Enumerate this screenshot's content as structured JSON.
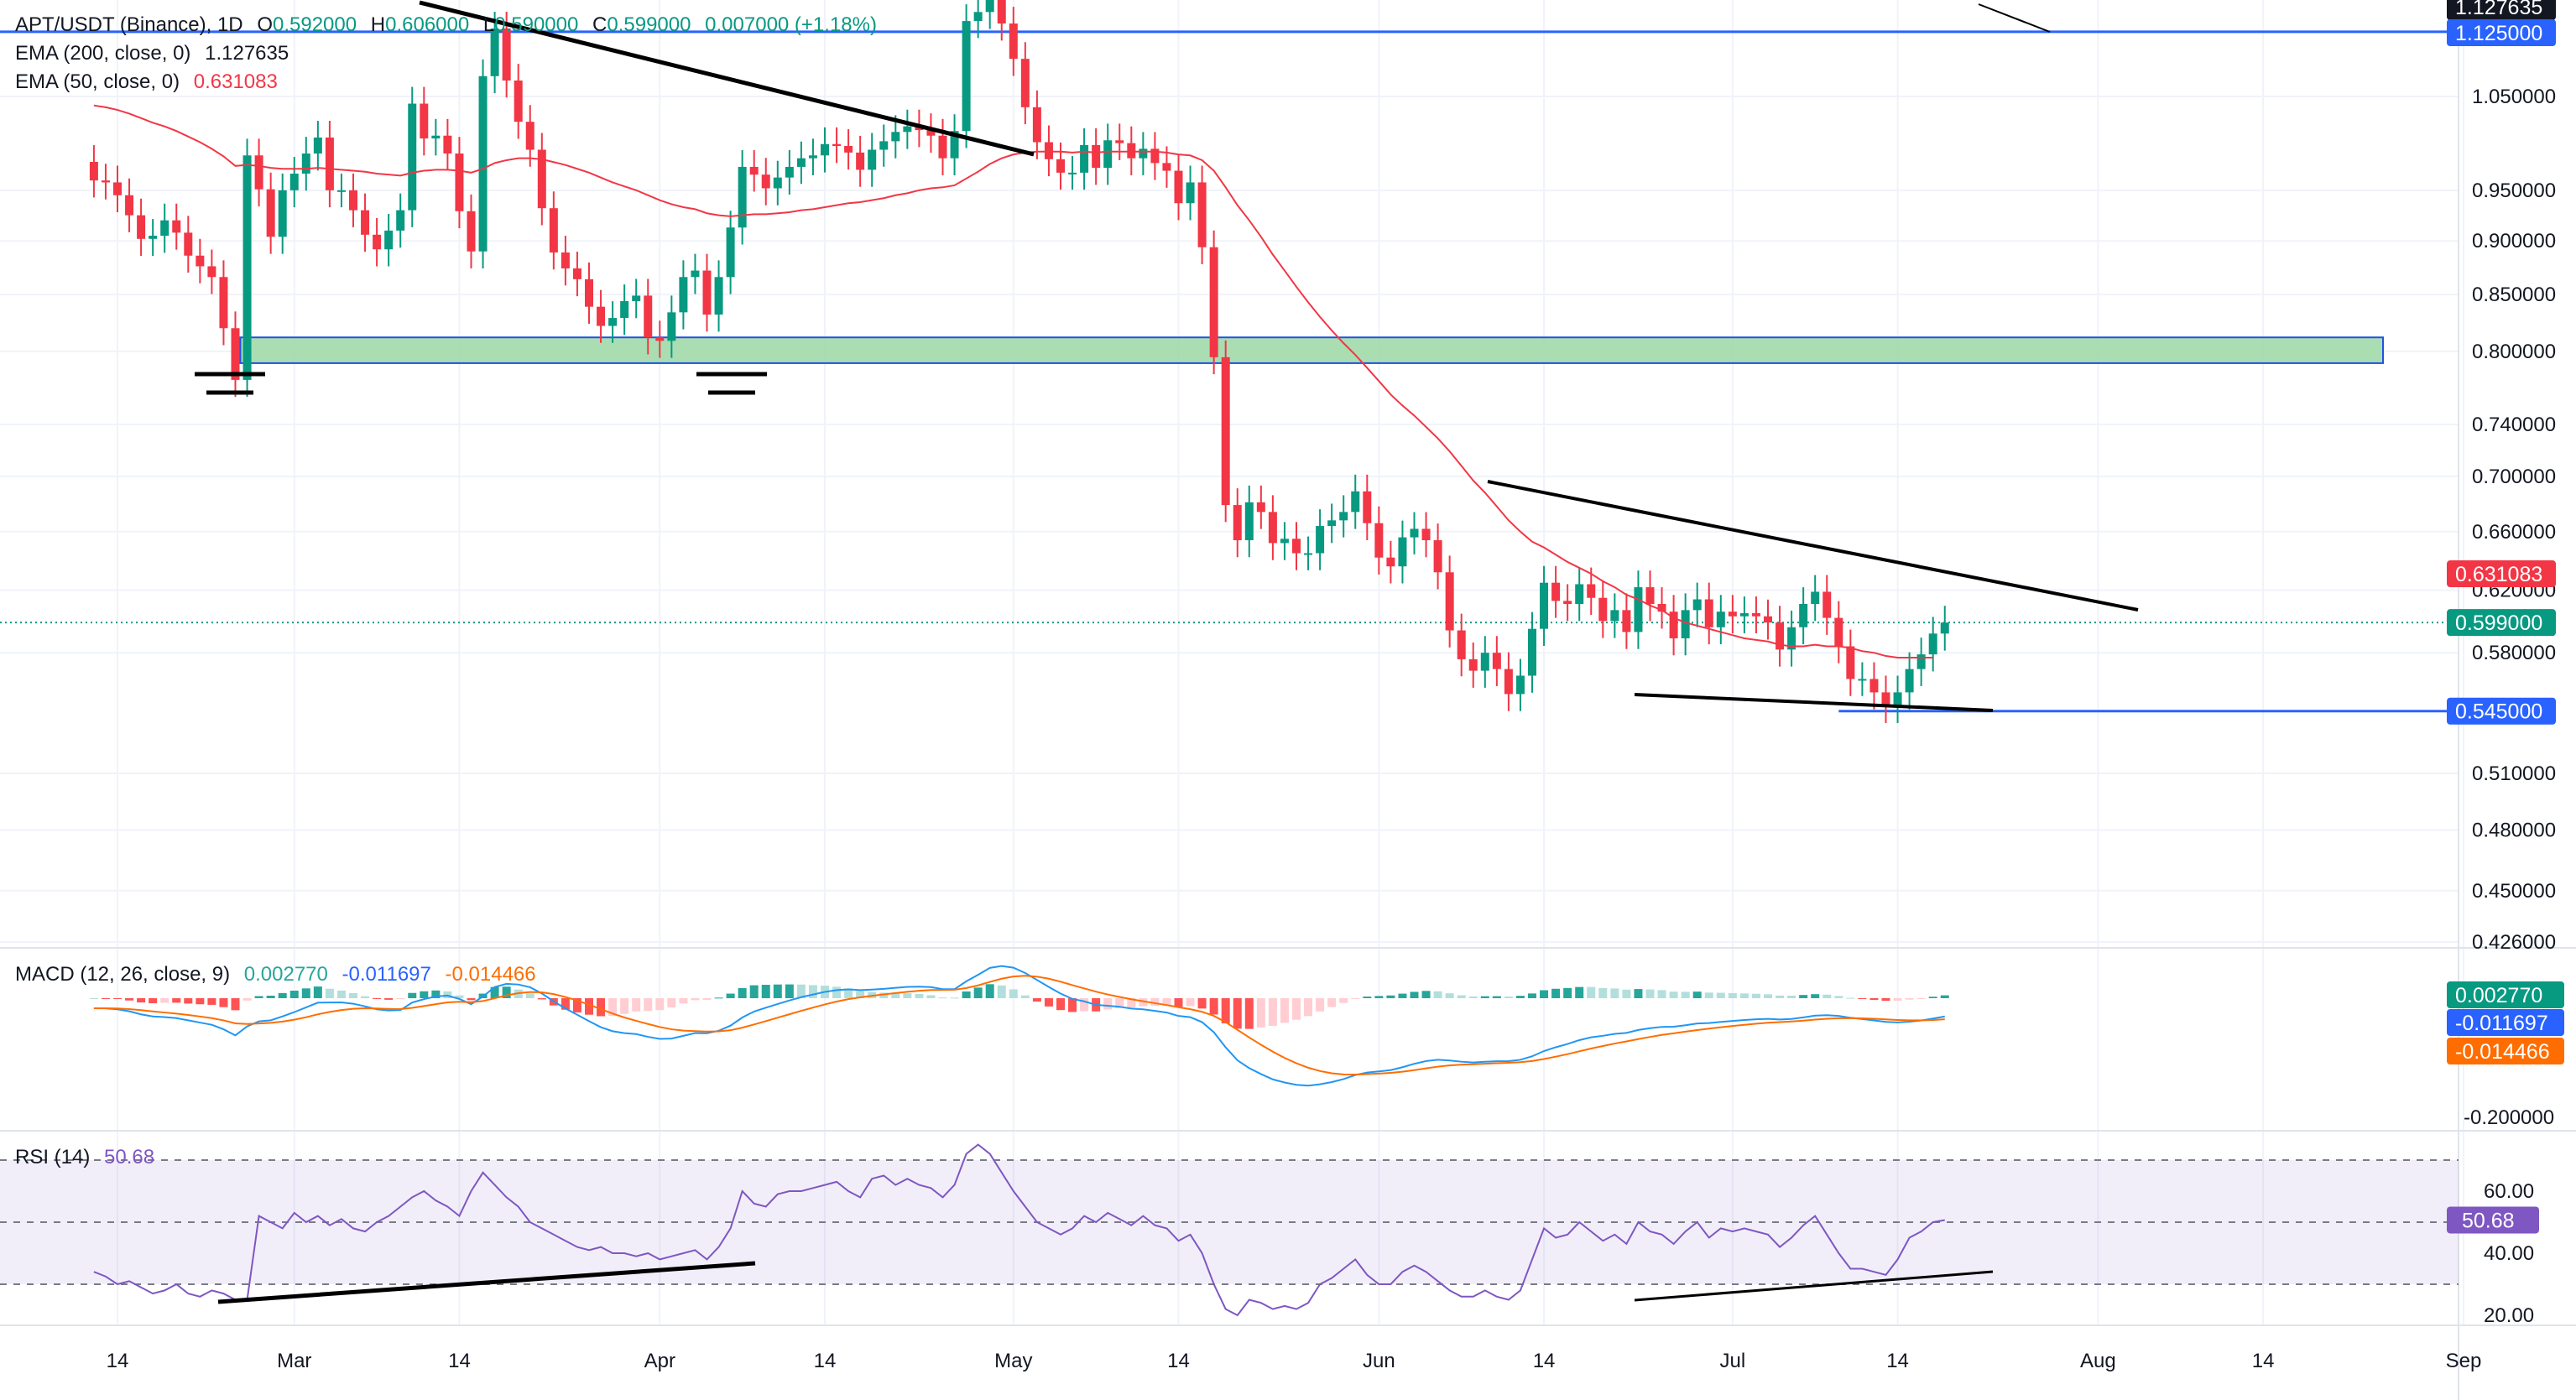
{
  "header": {
    "symbol": "APT/USDT (Binance), 1D",
    "o_label": "O",
    "o_val": "0.592000",
    "h_label": "H",
    "h_val": "0.606000",
    "l_label": "L",
    "l_val": "0.590000",
    "c_label": "C",
    "c_val": "0.599000",
    "change": "0.007000 (+1.18%)"
  },
  "indicators": {
    "ema200_label": "EMA (200, close, 0)",
    "ema200_val": "1.127635",
    "ema50_label": "EMA (50, close, 0)",
    "ema50_val": "0.631083",
    "macd_label": "MACD (12, 26, close, 9)",
    "macd_hist": "0.002770",
    "macd_line": "-0.011697",
    "macd_signal": "-0.014466",
    "rsi_label": "RSI (14)",
    "rsi_val": "50.68"
  },
  "colors": {
    "up": "#089981",
    "down": "#f23645",
    "ema50": "#f23645",
    "macd": "#2196f3",
    "signal": "#ff6d00",
    "rsi": "#7e57c2",
    "level": "#2962ff",
    "zone": "#9bd7a5"
  },
  "chart_data": {
    "type": "candlestick",
    "price_ticks": [
      "1.050000",
      "0.950000",
      "0.900000",
      "0.850000",
      "0.800000",
      "0.740000",
      "0.700000",
      "0.660000",
      "0.620000",
      "0.580000",
      "0.510000",
      "0.480000",
      "0.450000",
      "0.426000"
    ],
    "price_tick_values": [
      1.05,
      0.95,
      0.9,
      0.85,
      0.8,
      0.74,
      0.7,
      0.66,
      0.62,
      0.58,
      0.51,
      0.48,
      0.45,
      0.426
    ],
    "price_tags": [
      {
        "label": "1.127635",
        "value": 1.1276,
        "color": "#131722"
      },
      {
        "label": "1.125000",
        "value": 1.125,
        "color": "#2962ff"
      },
      {
        "label": "0.631083",
        "value": 0.631,
        "color": "#f23645"
      },
      {
        "label": "0.599000",
        "value": 0.599,
        "color": "#089981"
      },
      {
        "label": "0.545000",
        "value": 0.545,
        "color": "#2962ff"
      }
    ],
    "x_labels": [
      "14",
      "Mar",
      "14",
      "Apr",
      "14",
      "May",
      "14",
      "Jun",
      "14",
      "Jul",
      "14",
      "Aug",
      "14",
      "Sep"
    ],
    "x_label_days": [
      0,
      15,
      29,
      46,
      60,
      76,
      90,
      107,
      121,
      137,
      151,
      168,
      182,
      199
    ],
    "support_zone": [
      0.79,
      0.812
    ],
    "resistance_level": 1.125,
    "support_level": 0.545,
    "close": [
      0.96,
      0.958,
      0.945,
      0.925,
      0.902,
      0.905,
      0.92,
      0.908,
      0.886,
      0.876,
      0.866,
      0.82,
      0.776,
      0.986,
      0.951,
      0.904,
      0.95,
      0.967,
      0.988,
      1.005,
      0.95,
      0.95,
      0.93,
      0.906,
      0.892,
      0.91,
      0.93,
      1.042,
      1.004,
      1.007,
      0.988,
      0.929,
      0.89,
      1.073,
      1.129,
      1.068,
      1.022,
      0.992,
      0.932,
      0.889,
      0.874,
      0.864,
      0.839,
      0.822,
      0.829,
      0.844,
      0.849,
      0.812,
      0.809,
      0.834,
      0.866,
      0.872,
      0.832,
      0.866,
      0.913,
      0.974,
      0.966,
      0.952,
      0.963,
      0.974,
      0.983,
      0.986,
      0.998,
      0.996,
      0.989,
      0.971,
      0.992,
      1.001,
      1.011,
      1.017,
      1.013,
      1.007,
      0.983,
      1.012,
      1.138,
      1.149,
      1.182,
      1.135,
      1.093,
      1.038,
      1.0,
      0.982,
      0.968,
      0.968,
      0.997,
      0.973,
      1.002,
      0.999,
      0.983,
      0.993,
      0.978,
      0.97,
      0.937,
      0.958,
      0.894,
      0.795,
      0.679,
      0.654,
      0.681,
      0.674,
      0.652,
      0.655,
      0.645,
      0.645,
      0.664,
      0.668,
      0.674,
      0.689,
      0.666,
      0.642,
      0.636,
      0.656,
      0.662,
      0.654,
      0.632,
      0.594,
      0.576,
      0.569,
      0.58,
      0.57,
      0.555,
      0.566,
      0.595,
      0.625,
      0.613,
      0.611,
      0.624,
      0.615,
      0.6,
      0.607,
      0.593,
      0.622,
      0.611,
      0.606,
      0.589,
      0.607,
      0.614,
      0.596,
      0.606,
      0.603,
      0.605,
      0.603,
      0.599,
      0.582,
      0.596,
      0.611,
      0.619,
      0.602,
      0.584,
      0.564,
      0.564,
      0.556,
      0.548,
      0.556,
      0.57,
      0.579,
      0.592,
      0.599
    ],
    "ema50": [
      1.04,
      1.038,
      1.035,
      1.031,
      1.026,
      1.021,
      1.017,
      1.012,
      1.006,
      1.0,
      0.993,
      0.985,
      0.975,
      0.976,
      0.975,
      0.973,
      0.972,
      0.972,
      0.972,
      0.973,
      0.972,
      0.971,
      0.97,
      0.969,
      0.967,
      0.966,
      0.965,
      0.968,
      0.97,
      0.971,
      0.971,
      0.97,
      0.968,
      0.972,
      0.978,
      0.981,
      0.983,
      0.983,
      0.982,
      0.979,
      0.976,
      0.972,
      0.968,
      0.963,
      0.958,
      0.954,
      0.95,
      0.945,
      0.94,
      0.936,
      0.933,
      0.931,
      0.927,
      0.925,
      0.924,
      0.925,
      0.926,
      0.926,
      0.927,
      0.928,
      0.93,
      0.931,
      0.933,
      0.935,
      0.937,
      0.938,
      0.94,
      0.942,
      0.945,
      0.947,
      0.95,
      0.952,
      0.953,
      0.955,
      0.962,
      0.969,
      0.977,
      0.983,
      0.987,
      0.989,
      0.99,
      0.99,
      0.99,
      0.989,
      0.99,
      0.989,
      0.99,
      0.99,
      0.99,
      0.99,
      0.99,
      0.989,
      0.987,
      0.986,
      0.981,
      0.97,
      0.953,
      0.935,
      0.92,
      0.904,
      0.887,
      0.872,
      0.857,
      0.843,
      0.83,
      0.818,
      0.807,
      0.797,
      0.786,
      0.775,
      0.764,
      0.755,
      0.747,
      0.738,
      0.729,
      0.719,
      0.708,
      0.697,
      0.688,
      0.678,
      0.668,
      0.66,
      0.653,
      0.649,
      0.644,
      0.639,
      0.635,
      0.631,
      0.626,
      0.622,
      0.617,
      0.614,
      0.61,
      0.607,
      0.602,
      0.599,
      0.597,
      0.595,
      0.593,
      0.591,
      0.589,
      0.588,
      0.587,
      0.585,
      0.584,
      0.584,
      0.585,
      0.584,
      0.584,
      0.583,
      0.581,
      0.58,
      0.578,
      0.577,
      0.577,
      0.577,
      0.577,
      0.631
    ],
    "macd_range": [
      -0.2,
      0.05
    ],
    "rsi_ticks": [
      "60.00",
      "40.00",
      "20.00"
    ],
    "rsi_tick_values": [
      60,
      40,
      20
    ],
    "rsi_levels": [
      70,
      50,
      30
    ],
    "rsi": [
      34.0,
      32.5,
      30.0,
      31.0,
      29.0,
      27.0,
      28.0,
      30.0,
      27.0,
      26.0,
      28.0,
      27.0,
      25.0,
      25.0,
      52.0,
      50.0,
      48.0,
      53.0,
      50.0,
      52.0,
      49.0,
      51.0,
      48.0,
      47.0,
      50.0,
      52.0,
      55.0,
      58.0,
      60.0,
      57.0,
      55.0,
      52.0,
      60.0,
      66.0,
      62.0,
      58.0,
      55.0,
      50.0,
      48.0,
      46.0,
      44.0,
      42.0,
      41.0,
      42.0,
      40.0,
      40.0,
      39.0,
      40.0,
      38.0,
      39.0,
      40.0,
      41.0,
      38.0,
      42.0,
      48.0,
      60.0,
      56.0,
      55.0,
      59.0,
      60.0,
      60.0,
      61.0,
      62.0,
      63.0,
      60.0,
      58.0,
      64.0,
      65.0,
      62.0,
      64.0,
      62.0,
      61.0,
      58.0,
      62.0,
      72.0,
      75.0,
      72.0,
      66.0,
      60.0,
      55.0,
      50.0,
      48.0,
      46.0,
      48.0,
      52.0,
      50.0,
      53.0,
      51.0,
      49.0,
      52.0,
      49.0,
      48.0,
      44.0,
      46.0,
      40.0,
      30.0,
      22.0,
      20.0,
      25.0,
      24.0,
      22.0,
      23.0,
      22.0,
      24.0,
      30.0,
      32.0,
      35.0,
      38.0,
      33.0,
      30.0,
      30.0,
      34.0,
      36.0,
      34.0,
      31.0,
      28.0,
      26.0,
      26.0,
      28.0,
      26.0,
      25.0,
      28.0,
      38.0,
      48.0,
      45.0,
      46.0,
      50.0,
      47.0,
      44.0,
      46.0,
      43.0,
      50.0,
      47.0,
      46.0,
      43.0,
      47.0,
      50.0,
      45.0,
      48.0,
      47.0,
      48.0,
      47.0,
      46.0,
      42.0,
      45.0,
      49.0,
      52.0,
      46.0,
      40.0,
      35.0,
      35.0,
      34.0,
      33.0,
      38.0,
      45.0,
      47.0,
      50.0,
      50.68
    ]
  }
}
